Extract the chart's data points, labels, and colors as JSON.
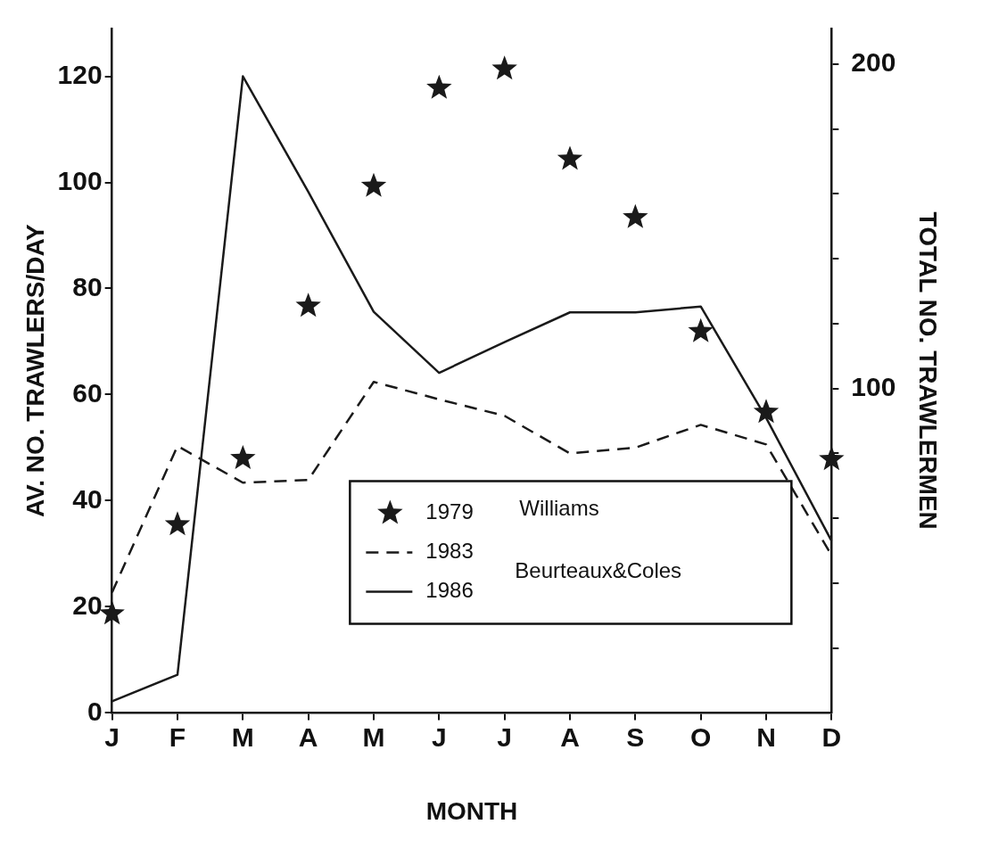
{
  "chart_data": {
    "type": "line",
    "xlabel": "MONTH",
    "ylabel": "AV. NO. TRAWLERS/DAY",
    "y2label": "TOTAL NO. TRAWLERMEN",
    "categories": [
      "J",
      "F",
      "M",
      "A",
      "M",
      "J",
      "J",
      "A",
      "S",
      "O",
      "N",
      "D"
    ],
    "series": [
      {
        "name": "1979",
        "type": "scatter",
        "marker": "star",
        "color": "#1a1a1a",
        "values": [
          18.7,
          35.5,
          48,
          76.7,
          99.3,
          117.8,
          121.4,
          104.4,
          93.4,
          71.9,
          56.7,
          47.8
        ]
      },
      {
        "name": "1983",
        "type": "line",
        "marker": "none",
        "line_style": "dashed",
        "color": "#1a1a1a",
        "values": [
          22.7,
          50.3,
          43.4,
          43.9,
          62.4,
          59.1,
          56,
          48.9,
          50,
          54.3,
          50.6,
          29.7
        ]
      },
      {
        "name": "1986",
        "type": "line",
        "marker": "none",
        "line_style": "solid",
        "color": "#1a1a1a",
        "values": [
          2.2,
          7.2,
          120,
          98.2,
          75.6,
          64.1,
          69.9,
          75.5,
          75.5,
          76.6,
          55.6,
          32.4
        ]
      }
    ],
    "ylim": [
      0,
      129
    ],
    "yticks": [
      0,
      20,
      40,
      60,
      80,
      100,
      120
    ],
    "y2lim": [
      0,
      211
    ],
    "y2ticks": [
      {
        "value": 20,
        "label": null
      },
      {
        "value": 40,
        "label": null
      },
      {
        "value": 60,
        "label": null
      },
      {
        "value": 80,
        "label": null
      },
      100,
      {
        "value": 120,
        "label": null
      },
      {
        "value": 140,
        "label": null
      },
      {
        "value": 160,
        "label": null
      },
      {
        "value": 180,
        "label": null
      },
      200
    ],
    "annotations": [
      "Williams",
      "Beurteaux&Coles"
    ],
    "grid": false,
    "legend": "bottom"
  }
}
